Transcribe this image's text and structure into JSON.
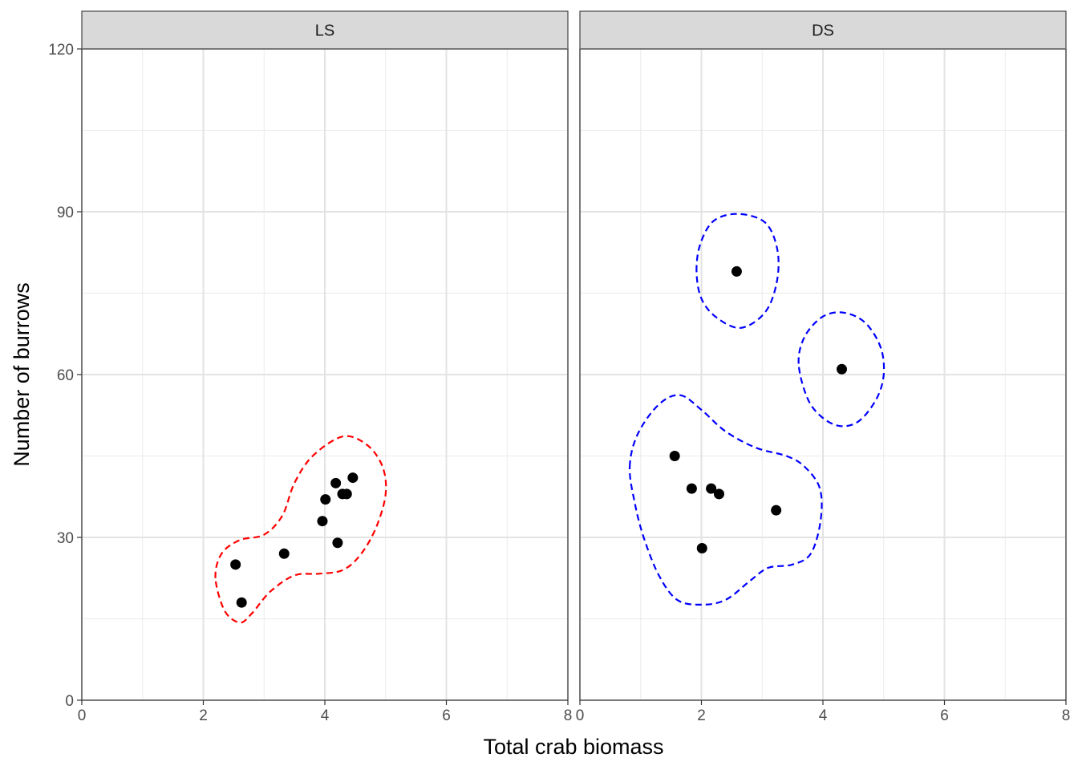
{
  "chart_data": {
    "type": "scatter",
    "xlabel": "Total crab biomass",
    "ylabel": "Number of burrows",
    "xlim": [
      0,
      8
    ],
    "ylim": [
      0,
      120
    ],
    "x_ticks": [
      0,
      2,
      4,
      6,
      8
    ],
    "y_ticks": [
      0,
      30,
      60,
      90,
      120
    ],
    "grid": true,
    "point_color": "#000000",
    "panels": [
      {
        "name": "LS",
        "contour_color": "#ff0000",
        "contour_style": "dashed",
        "points": [
          {
            "x": 2.53,
            "y": 25
          },
          {
            "x": 2.63,
            "y": 18
          },
          {
            "x": 3.33,
            "y": 27
          },
          {
            "x": 3.96,
            "y": 33
          },
          {
            "x": 4.01,
            "y": 37
          },
          {
            "x": 4.18,
            "y": 40
          },
          {
            "x": 4.21,
            "y": 29
          },
          {
            "x": 4.29,
            "y": 38
          },
          {
            "x": 4.36,
            "y": 38
          },
          {
            "x": 4.46,
            "y": 41
          }
        ],
        "contours": [
          [
            [
              2.2,
              22.5
            ],
            [
              2.3,
              27
            ],
            [
              2.6,
              29.5
            ],
            [
              3.0,
              30.5
            ],
            [
              3.3,
              34
            ],
            [
              3.5,
              40
            ],
            [
              3.8,
              45
            ],
            [
              4.3,
              48.6
            ],
            [
              4.7,
              47
            ],
            [
              4.95,
              43
            ],
            [
              5.0,
              38
            ],
            [
              4.85,
              32
            ],
            [
              4.6,
              27
            ],
            [
              4.3,
              24
            ],
            [
              3.9,
              23.3
            ],
            [
              3.5,
              23
            ],
            [
              3.1,
              20
            ],
            [
              2.8,
              16
            ],
            [
              2.6,
              14.3
            ],
            [
              2.35,
              16.5
            ]
          ]
        ]
      },
      {
        "name": "DS",
        "contour_color": "#0000ff",
        "contour_style": "dashed",
        "points": [
          {
            "x": 1.56,
            "y": 45
          },
          {
            "x": 1.84,
            "y": 39
          },
          {
            "x": 2.01,
            "y": 28
          },
          {
            "x": 2.16,
            "y": 39
          },
          {
            "x": 2.29,
            "y": 38
          },
          {
            "x": 2.58,
            "y": 79
          },
          {
            "x": 3.23,
            "y": 35
          },
          {
            "x": 4.31,
            "y": 61
          }
        ],
        "contours": [
          [
            [
              0.82,
              43
            ],
            [
              0.95,
              49
            ],
            [
              1.3,
              54.5
            ],
            [
              1.65,
              56.2
            ],
            [
              2.0,
              53.5
            ],
            [
              2.4,
              49.5
            ],
            [
              2.9,
              46.5
            ],
            [
              3.4,
              45
            ],
            [
              3.7,
              43
            ],
            [
              3.95,
              39
            ],
            [
              3.96,
              33
            ],
            [
              3.8,
              27
            ],
            [
              3.5,
              25
            ],
            [
              3.1,
              24.4
            ],
            [
              2.8,
              22
            ],
            [
              2.4,
              18.5
            ],
            [
              2.0,
              17.6
            ],
            [
              1.6,
              18.5
            ],
            [
              1.3,
              23
            ],
            [
              1.05,
              30
            ],
            [
              0.9,
              36.5
            ]
          ],
          [
            [
              1.92,
              79
            ],
            [
              1.98,
              84
            ],
            [
              2.2,
              88.3
            ],
            [
              2.6,
              89.6
            ],
            [
              3.05,
              88
            ],
            [
              3.25,
              83
            ],
            [
              3.24,
              77
            ],
            [
              3.05,
              71.5
            ],
            [
              2.65,
              68.6
            ],
            [
              2.25,
              70.5
            ],
            [
              2.0,
              74
            ]
          ],
          [
            [
              3.6,
              62
            ],
            [
              3.7,
              67
            ],
            [
              4.0,
              70.7
            ],
            [
              4.35,
              71.4
            ],
            [
              4.7,
              69.5
            ],
            [
              4.95,
              65
            ],
            [
              5.0,
              60
            ],
            [
              4.88,
              55.5
            ],
            [
              4.6,
              51.5
            ],
            [
              4.3,
              50.5
            ],
            [
              4.0,
              52
            ],
            [
              3.75,
              55.5
            ]
          ]
        ]
      }
    ]
  }
}
